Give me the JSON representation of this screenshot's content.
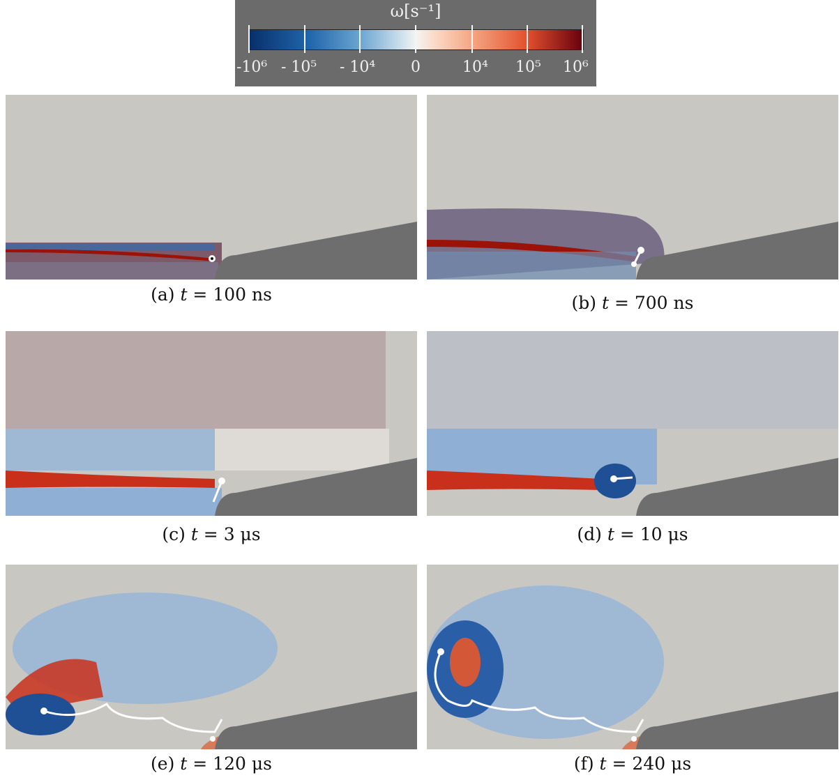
{
  "colorbar": {
    "title": "ω[s⁻¹]",
    "labels": [
      "-10⁶",
      "- 10⁵",
      "- 10⁴",
      "0",
      "10⁴",
      "10⁵",
      "10⁶"
    ]
  },
  "panels": [
    {
      "id": "a",
      "caption_prefix": "(a) ",
      "caption_var": "t",
      "caption_rest": " = 100 ns"
    },
    {
      "id": "b",
      "caption_prefix": "(b) ",
      "caption_var": "t",
      "caption_rest": " = 700 ns"
    },
    {
      "id": "c",
      "caption_prefix": "(c) ",
      "caption_var": "t",
      "caption_rest": " = 3 μs"
    },
    {
      "id": "d",
      "caption_prefix": "(d) ",
      "caption_var": "t",
      "caption_rest": " = 10 μs"
    },
    {
      "id": "e",
      "caption_prefix": "(e) ",
      "caption_var": "t",
      "caption_rest": " = 120 μs"
    },
    {
      "id": "f",
      "caption_prefix": "(f) ",
      "caption_var": "t",
      "caption_rest": " = 240 μs"
    }
  ],
  "colors": {
    "background": "#c9c7c2",
    "wedge": "#6e6e6e",
    "positive": "#c8301c",
    "negative": "#2a5fa8",
    "trajectory": "#ffffff"
  }
}
